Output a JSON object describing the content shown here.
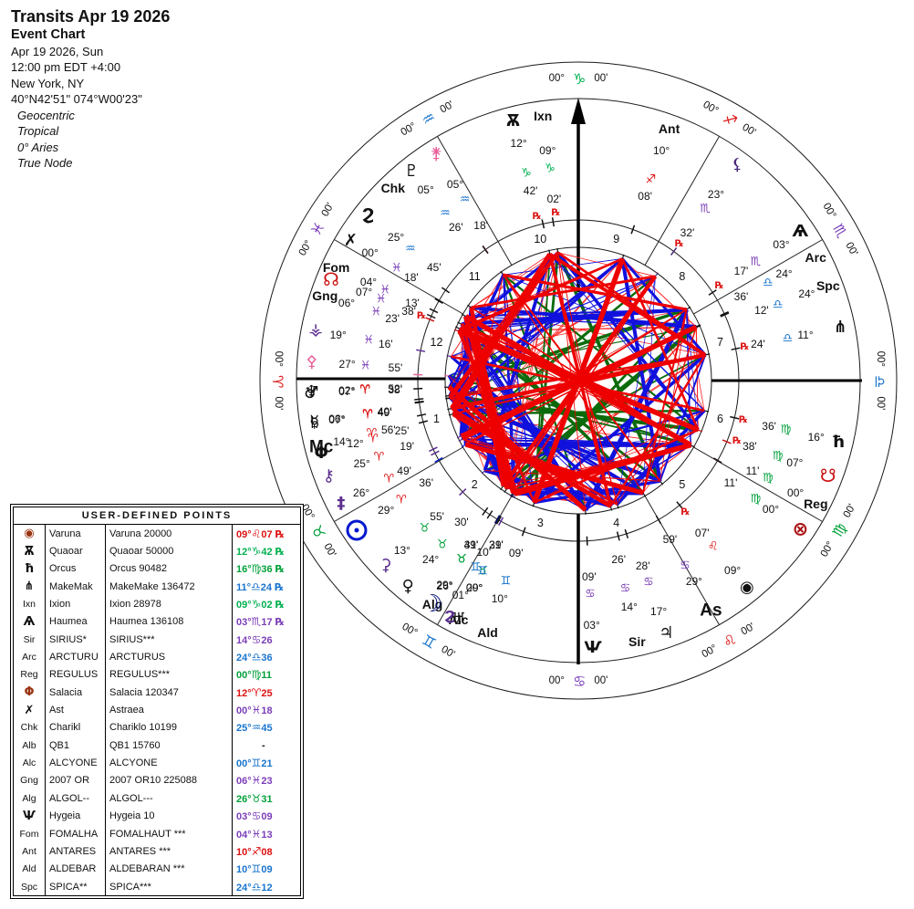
{
  "header": {
    "title": "Transits Apr 19 2026",
    "subtitle": "Event Chart",
    "date_line": "Apr 19 2026, Sun",
    "time_line": "12:00 pm  EDT +4:00",
    "place_line": "New York, NY",
    "coords_line": "40°N42'51\" 074°W00'23\"",
    "options": [
      "Geocentric",
      "Tropical",
      "0° Aries",
      "True Node"
    ]
  },
  "wheel": {
    "cusp_deg": "00°",
    "cusp_min": "00'",
    "retro_symbol": "℞",
    "houses": [
      "1",
      "2",
      "3",
      "4",
      "5",
      "6",
      "7",
      "8",
      "9",
      "10",
      "11",
      "12"
    ],
    "signs": [
      {
        "name": "aries",
        "glyph": "♈",
        "color": "#dd1111"
      },
      {
        "name": "taurus",
        "glyph": "♉",
        "color": "#00a13a"
      },
      {
        "name": "gemini",
        "glyph": "♊",
        "color": "#1874cd"
      },
      {
        "name": "cancer",
        "glyph": "♋",
        "color": "#7a3db8"
      },
      {
        "name": "leo",
        "glyph": "♌",
        "color": "#dd1111"
      },
      {
        "name": "virgo",
        "glyph": "♍",
        "color": "#00a13a"
      },
      {
        "name": "libra",
        "glyph": "♎",
        "color": "#1874cd"
      },
      {
        "name": "scorpio",
        "glyph": "♏",
        "color": "#7a3db8"
      },
      {
        "name": "sagittarius",
        "glyph": "♐",
        "color": "#dd1111"
      },
      {
        "name": "capricorn",
        "glyph": "♑",
        "color": "#00b050"
      },
      {
        "name": "aquarius",
        "glyph": "♒",
        "color": "#1874cd"
      },
      {
        "name": "pisces",
        "glyph": "♓",
        "color": "#7a3db8"
      }
    ],
    "aspect_colors": {
      "hard": "#ee0000",
      "soft": "#1111dd",
      "quincunx": "#0b6b0b",
      "minor": "#ff2222"
    },
    "planets": [
      {
        "name": "neptune",
        "kind": "glyph",
        "glyph": "♆",
        "color": "#111111",
        "deg": "02°",
        "min": "52'",
        "sign": 0,
        "retro": false,
        "lon": 2.87
      },
      {
        "name": "mercury",
        "kind": "glyph",
        "glyph": "☿",
        "color": "#111111",
        "deg": "06°",
        "min": "40'",
        "sign": 0,
        "retro": false,
        "lon": 6.67
      },
      {
        "name": "mars",
        "kind": "glyph",
        "glyph": "♂",
        "color": "#111111",
        "deg": "07°",
        "min": "38'",
        "sign": 0,
        "retro": false,
        "lon": 7.63
      },
      {
        "name": "saturn",
        "kind": "glyph",
        "glyph": "♄",
        "color": "#111111",
        "deg": "07°",
        "min": "49'",
        "sign": 0,
        "retro": false,
        "lon": 7.82
      },
      {
        "name": "salacia",
        "kind": "glyph",
        "glyph": "Φ",
        "color": "#111111",
        "deg": "12°",
        "min": "25'",
        "sign": 0,
        "retro": false,
        "lon": 12.42
      },
      {
        "name": "midheaven",
        "kind": "biglabel",
        "label": "Mc",
        "color": "#111111",
        "deg": "14°",
        "min": "56'",
        "sign": 0,
        "retro": false,
        "lon": 14.93
      },
      {
        "name": "chiron",
        "kind": "glyph",
        "glyph": "⚷",
        "color": "#5b2d8e",
        "deg": "25°",
        "min": "19'",
        "sign": 0,
        "retro": false,
        "lon": 25.32
      },
      {
        "name": "eris",
        "kind": "glyph",
        "glyph": "‡",
        "color": "#5b2d8e",
        "deg": "26°",
        "min": "49'",
        "sign": 0,
        "retro": false,
        "lon": 26.82
      },
      {
        "name": "sun",
        "kind": "sun",
        "glyph": "☉",
        "color": "#0018cc",
        "deg": "29°",
        "min": "36'",
        "sign": 0,
        "retro": false,
        "lon": 29.6
      },
      {
        "name": "ceres",
        "kind": "glyph",
        "glyph": "⚳",
        "color": "#5b2d8e",
        "deg": "13°",
        "min": "55'",
        "sign": 1,
        "retro": false,
        "lon": 43.92
      },
      {
        "name": "venus",
        "kind": "glyph",
        "glyph": "♀",
        "color": "#111111",
        "deg": "24°",
        "min": "30'",
        "sign": 1,
        "retro": false,
        "lon": 54.5
      },
      {
        "name": "algol",
        "kind": "label",
        "label": "Alg",
        "color": "#111111",
        "deg": "26°",
        "min": "31'",
        "sign": 1,
        "retro": false,
        "lon": 56.52
      },
      {
        "name": "uranus",
        "kind": "glyph",
        "glyph": "♅",
        "color": "#111111",
        "deg": "29°",
        "min": "39'",
        "sign": 1,
        "retro": false,
        "lon": 59.65
      },
      {
        "name": "moon",
        "kind": "glyph",
        "glyph": "☽",
        "color": "#001177",
        "deg": "29°",
        "min": "49'",
        "sign": 1,
        "retro": false,
        "lon": 59.82
      },
      {
        "name": "alcyone",
        "kind": "label",
        "label": "Alc",
        "color": "#111111",
        "deg": "00°",
        "min": "21'",
        "sign": 2,
        "retro": false,
        "lon": 60.35
      },
      {
        "name": "sedna",
        "kind": "glyph",
        "glyph": "ϩ",
        "color": "#5b2d8e",
        "deg": "01°",
        "min": "10'",
        "sign": 2,
        "retro": false,
        "lon": 61.17
      },
      {
        "name": "aldebaran",
        "kind": "label",
        "label": "Ald",
        "color": "#111111",
        "deg": "10°",
        "min": "09'",
        "sign": 2,
        "retro": false,
        "lon": 70.15
      },
      {
        "name": "hygeia",
        "kind": "glyph",
        "glyph": "Ѱ",
        "color": "#111111",
        "deg": "03°",
        "min": "09'",
        "sign": 3,
        "retro": false,
        "lon": 93.15
      },
      {
        "name": "sirius",
        "kind": "label",
        "label": "Sir",
        "color": "#111111",
        "deg": "14°",
        "min": "26'",
        "sign": 3,
        "retro": false,
        "lon": 104.43
      },
      {
        "name": "jupiter",
        "kind": "glyph",
        "glyph": "♃",
        "color": "#111111",
        "deg": "17°",
        "min": "28'",
        "sign": 3,
        "retro": false,
        "lon": 107.47
      },
      {
        "name": "ascendant",
        "kind": "biglabel",
        "label": "As",
        "color": "#111111",
        "deg": "29°",
        "min": "59'",
        "sign": 3,
        "retro": false,
        "lon": 119.98
      },
      {
        "name": "varuna",
        "kind": "glyph",
        "glyph": "◉",
        "color": "#111111",
        "deg": "09°",
        "min": "07'",
        "sign": 4,
        "retro": true,
        "lon": 129.12
      },
      {
        "name": "fortune",
        "kind": "glyph",
        "glyph": "⊗",
        "color": "#aa1111",
        "deg": "00°",
        "min": "11'",
        "sign": 5,
        "retro": false,
        "lon": 150.18
      },
      {
        "name": "regulus",
        "kind": "label",
        "label": "Reg",
        "color": "#111111",
        "deg": "00°",
        "min": "11'",
        "sign": 5,
        "retro": false,
        "lon": 150.19
      },
      {
        "name": "south-node",
        "kind": "glyph",
        "glyph": "☋",
        "color": "#cc1111",
        "deg": "07°",
        "min": "38'",
        "sign": 5,
        "retro": true,
        "lon": 157.63
      },
      {
        "name": "orcus",
        "kind": "glyph",
        "glyph": "ħ",
        "color": "#111111",
        "deg": "16°",
        "min": "36'",
        "sign": 5,
        "retro": true,
        "lon": 166.6
      },
      {
        "name": "makemake",
        "kind": "glyph",
        "glyph": "⋔",
        "color": "#111111",
        "deg": "11°",
        "min": "24'",
        "sign": 6,
        "retro": true,
        "lon": 191.4
      },
      {
        "name": "spica",
        "kind": "label",
        "label": "Spc",
        "color": "#111111",
        "deg": "24°",
        "min": "12'",
        "sign": 6,
        "retro": false,
        "lon": 204.2
      },
      {
        "name": "arcturus",
        "kind": "label",
        "label": "Arc",
        "color": "#111111",
        "deg": "24°",
        "min": "36'",
        "sign": 6,
        "retro": false,
        "lon": 204.6
      },
      {
        "name": "haumea",
        "kind": "glyph",
        "glyph": "Ѧ",
        "color": "#111111",
        "deg": "03°",
        "min": "17'",
        "sign": 7,
        "retro": true,
        "lon": 213.28
      },
      {
        "name": "lilith",
        "kind": "glyph",
        "glyph": "⚸",
        "color": "#4a2a7a",
        "deg": "23°",
        "min": "32'",
        "sign": 7,
        "retro": true,
        "lon": 233.53
      },
      {
        "name": "antares",
        "kind": "label",
        "label": "Ant",
        "color": "#111111",
        "deg": "10°",
        "min": "08'",
        "sign": 8,
        "retro": false,
        "lon": 250.13
      },
      {
        "name": "ixion",
        "kind": "label",
        "label": "Ixn",
        "color": "#111111",
        "deg": "09°",
        "min": "02'",
        "sign": 9,
        "retro": true,
        "lon": 279.03
      },
      {
        "name": "quaoar",
        "kind": "glyph",
        "glyph": "Ѫ",
        "color": "#111111",
        "deg": "12°",
        "min": "42'",
        "sign": 9,
        "retro": true,
        "lon": 282.7
      },
      {
        "name": "juno",
        "kind": "glyph",
        "glyph": "⚵",
        "color": "#e8649c",
        "deg": "05°",
        "min": "18'",
        "sign": 10,
        "retro": false,
        "lon": 305.3
      },
      {
        "name": "pluto",
        "kind": "glyph",
        "glyph": "♇",
        "color": "#111111",
        "deg": "05°",
        "min": "26'",
        "sign": 10,
        "retro": false,
        "lon": 305.43
      },
      {
        "name": "chariklo",
        "kind": "glyph-label",
        "glyph": "Ϩ",
        "label": "Chk",
        "color": "#111111",
        "deg": "25°",
        "min": "45'",
        "sign": 10,
        "retro": false,
        "lon": 325.75
      },
      {
        "name": "astraea",
        "kind": "glyph",
        "glyph": "✗",
        "color": "#111111",
        "deg": "00°",
        "min": "18'",
        "sign": 11,
        "retro": false,
        "lon": 330.3
      },
      {
        "name": "fomalhaut",
        "kind": "label",
        "label": "Fom",
        "color": "#111111",
        "deg": "04°",
        "min": "13'",
        "sign": 11,
        "retro": false,
        "lon": 334.22
      },
      {
        "name": "or10-2007",
        "kind": "label",
        "label": "Gng",
        "color": "#111111",
        "deg": "06°",
        "min": "23'",
        "sign": 11,
        "retro": false,
        "lon": 336.38
      },
      {
        "name": "north-node",
        "kind": "glyph",
        "glyph": "☊",
        "color": "#cc1111",
        "deg": "07°",
        "min": "38'",
        "sign": 11,
        "retro": true,
        "lon": 337.63
      },
      {
        "name": "vesta",
        "kind": "glyph",
        "glyph": "⚶",
        "color": "#5b2d8e",
        "deg": "19°",
        "min": "16'",
        "sign": 11,
        "retro": false,
        "lon": 349.27
      },
      {
        "name": "pallas",
        "kind": "glyph",
        "glyph": "⚴",
        "color": "#e8649c",
        "deg": "27°",
        "min": "55'",
        "sign": 11,
        "retro": false,
        "lon": 357.92
      }
    ]
  },
  "table": {
    "title": "USER-DEFINED POINTS",
    "rows": [
      {
        "key": "◉",
        "glyph_key": true,
        "key_color": "#993311",
        "name": "Varuna",
        "full": "Varuna 20000",
        "deg": "09°",
        "sign": 4,
        "min": "07",
        "retro": true,
        "dash": false
      },
      {
        "key": "Ѫ",
        "glyph_key": true,
        "key_color": "#111111",
        "name": "Quaoar",
        "full": "Quaoar 50000",
        "deg": "12°",
        "sign": 9,
        "min": "42",
        "retro": true,
        "dash": false
      },
      {
        "key": "ħ",
        "glyph_key": true,
        "key_color": "#111111",
        "name": "Orcus",
        "full": "Orcus 90482",
        "deg": "16°",
        "sign": 5,
        "min": "36",
        "retro": true,
        "dash": false
      },
      {
        "key": "⋔",
        "glyph_key": true,
        "key_color": "#111111",
        "name": "MakeMak",
        "full": "MakeMake 136472",
        "deg": "11°",
        "sign": 6,
        "min": "24",
        "retro": true,
        "dash": false
      },
      {
        "key": "Ixn",
        "glyph_key": false,
        "key_color": "#111111",
        "name": "Ixion",
        "full": "Ixion 28978",
        "deg": "09°",
        "sign": 9,
        "min": "02",
        "retro": true,
        "dash": false
      },
      {
        "key": "Ѧ",
        "glyph_key": true,
        "key_color": "#111111",
        "name": "Haumea",
        "full": "Haumea 136108",
        "deg": "03°",
        "sign": 7,
        "min": "17",
        "retro": true,
        "dash": false
      },
      {
        "key": "Sir",
        "glyph_key": false,
        "key_color": "#111111",
        "name": "SIRIUS*",
        "full": "SIRIUS***",
        "deg": "14°",
        "sign": 3,
        "min": "26",
        "retro": false,
        "dash": false
      },
      {
        "key": "Arc",
        "glyph_key": false,
        "key_color": "#111111",
        "name": "ARCTURU",
        "full": "ARCTURUS",
        "deg": "24°",
        "sign": 6,
        "min": "36",
        "retro": false,
        "dash": false
      },
      {
        "key": "Reg",
        "glyph_key": false,
        "key_color": "#111111",
        "name": "REGULUS",
        "full": "REGULUS***",
        "deg": "00°",
        "sign": 5,
        "min": "11",
        "retro": false,
        "dash": false
      },
      {
        "key": "Φ",
        "glyph_key": true,
        "key_color": "#993311",
        "name": "Salacia",
        "full": "Salacia 120347",
        "deg": "12°",
        "sign": 0,
        "min": "25",
        "retro": false,
        "dash": false
      },
      {
        "key": "✗",
        "glyph_key": true,
        "key_color": "#111111",
        "name": "Ast",
        "full": "Astraea",
        "deg": "00°",
        "sign": 11,
        "min": "18",
        "retro": false,
        "dash": false
      },
      {
        "key": "Chk",
        "glyph_key": false,
        "key_color": "#111111",
        "name": "Charikl",
        "full": "Chariklo 10199",
        "deg": "25°",
        "sign": 10,
        "min": "45",
        "retro": false,
        "dash": false
      },
      {
        "key": "Alb",
        "glyph_key": false,
        "key_color": "#111111",
        "name": "QB1",
        "full": "QB1 15760",
        "deg": "",
        "sign": 0,
        "min": "",
        "retro": false,
        "dash": true
      },
      {
        "key": "Alc",
        "glyph_key": false,
        "key_color": "#111111",
        "name": "ALCYONE",
        "full": "ALCYONE",
        "deg": "00°",
        "sign": 2,
        "min": "21",
        "retro": false,
        "dash": false
      },
      {
        "key": "Gng",
        "glyph_key": false,
        "key_color": "#111111",
        "name": "2007 OR",
        "full": "2007 OR10 225088",
        "deg": "06°",
        "sign": 11,
        "min": "23",
        "retro": false,
        "dash": false
      },
      {
        "key": "Alg",
        "glyph_key": false,
        "key_color": "#111111",
        "name": "ALGOL--",
        "full": "ALGOL---",
        "deg": "26°",
        "sign": 1,
        "min": "31",
        "retro": false,
        "dash": false
      },
      {
        "key": "Ѱ",
        "glyph_key": true,
        "key_color": "#111111",
        "name": "Hygeia",
        "full": "Hygeia 10",
        "deg": "03°",
        "sign": 3,
        "min": "09",
        "retro": false,
        "dash": false
      },
      {
        "key": "Fom",
        "glyph_key": false,
        "key_color": "#111111",
        "name": "FOMALHA",
        "full": "FOMALHAUT ***",
        "deg": "04°",
        "sign": 11,
        "min": "13",
        "retro": false,
        "dash": false
      },
      {
        "key": "Ant",
        "glyph_key": false,
        "key_color": "#111111",
        "name": "ANTARES",
        "full": "ANTARES ***",
        "deg": "10°",
        "sign": 8,
        "min": "08",
        "retro": false,
        "dash": false
      },
      {
        "key": "Ald",
        "glyph_key": false,
        "key_color": "#111111",
        "name": "ALDEBAR",
        "full": "ALDEBARAN ***",
        "deg": "10°",
        "sign": 2,
        "min": "09",
        "retro": false,
        "dash": false
      },
      {
        "key": "Spc",
        "glyph_key": false,
        "key_color": "#111111",
        "name": "SPICA**",
        "full": "SPICA***",
        "deg": "24°",
        "sign": 6,
        "min": "12",
        "retro": false,
        "dash": false
      }
    ]
  }
}
